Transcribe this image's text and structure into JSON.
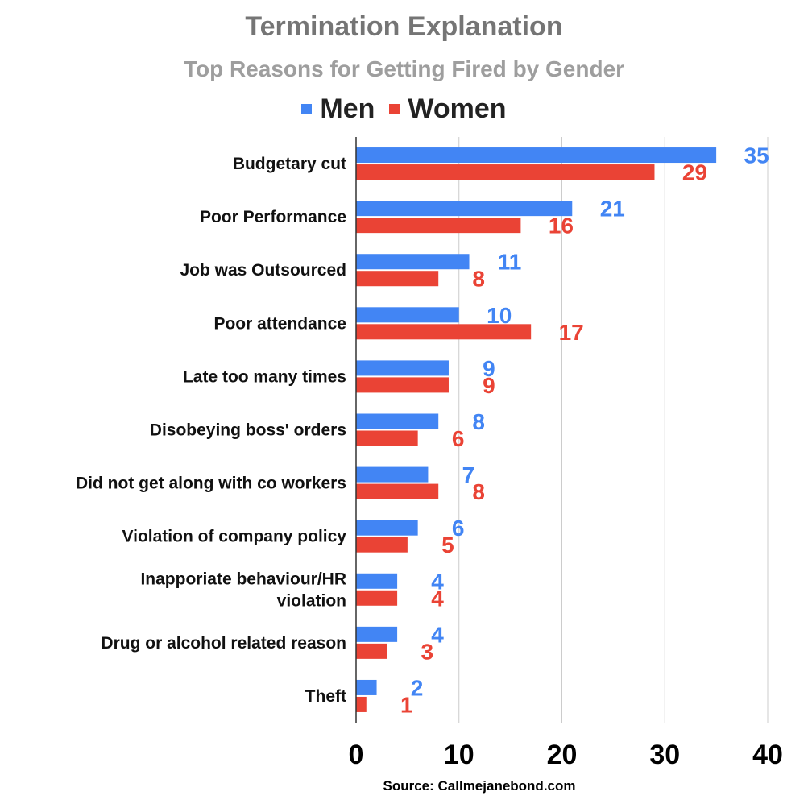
{
  "chart_data": {
    "type": "bar",
    "orientation": "horizontal",
    "title": "Termination Explanation",
    "subtitle": "Top Reasons for Getting Fired by Gender",
    "categories": [
      "Budgetary cut",
      "Poor Performance",
      "Job was Outsourced",
      "Poor attendance",
      "Late too many times",
      "Disobeying boss' orders",
      "Did not get along with co workers",
      "Violation of company policy",
      "Inapporiate behaviour/HR violation",
      "Drug or alcohol related reason",
      "Theft"
    ],
    "series": [
      {
        "name": "Men",
        "color": "#4285f4",
        "values": [
          35,
          21,
          11,
          10,
          9,
          8,
          7,
          6,
          4,
          4,
          2
        ]
      },
      {
        "name": "Women",
        "color": "#ea4335",
        "values": [
          29,
          16,
          8,
          17,
          9,
          6,
          8,
          5,
          4,
          3,
          1
        ]
      }
    ],
    "xlim": [
      0,
      40
    ],
    "xticks": [
      "0",
      "10",
      "20",
      "30",
      "40"
    ],
    "grid": true,
    "legend_position": "top",
    "data_labels": true,
    "source": "Source: Callmejanebond.com"
  }
}
